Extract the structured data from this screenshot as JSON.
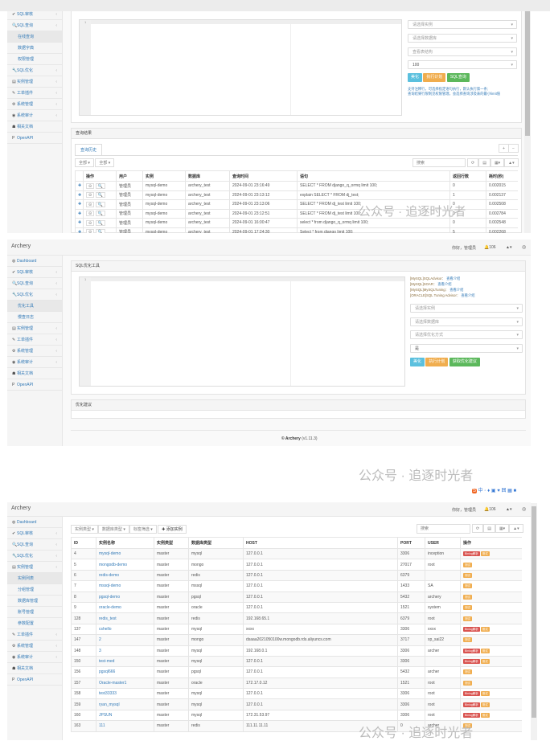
{
  "brand": "Archery",
  "navbar": {
    "greeting": "你好，管理员",
    "notif_count": "106"
  },
  "sidebar1": [
    {
      "label": "SQL审核",
      "icon": "check-icon",
      "arrow": true
    },
    {
      "label": "SQL查询",
      "icon": "search-icon",
      "arrow": true
    },
    {
      "label": "在线查询",
      "sub": true,
      "active": true
    },
    {
      "label": "数据字典",
      "sub": true
    },
    {
      "label": "权限管理",
      "sub": true
    },
    {
      "label": "SQL优化",
      "icon": "wrench-icon",
      "arrow": true
    },
    {
      "label": "实例管理",
      "icon": "database-icon",
      "arrow": true
    },
    {
      "label": "工单插件",
      "icon": "plugin-icon",
      "arrow": true
    },
    {
      "label": "系统管理",
      "icon": "gears-icon",
      "arrow": true
    },
    {
      "label": "系统审计",
      "icon": "eye-icon",
      "arrow": true
    },
    {
      "label": "相关文档",
      "icon": "sitemap-icon"
    },
    {
      "label": "OpenAPI",
      "icon": "api-icon"
    }
  ],
  "sidebar2": [
    {
      "label": "Dashboard",
      "icon": "dashboard-icon"
    },
    {
      "label": "SQL审核",
      "icon": "check-icon",
      "arrow": true
    },
    {
      "label": "SQL查询",
      "icon": "search-icon",
      "arrow": true
    },
    {
      "label": "SQL优化",
      "icon": "wrench-icon",
      "arrow": true
    },
    {
      "label": "优化工具",
      "sub": true,
      "active": true
    },
    {
      "label": "慢查日志",
      "sub": true
    },
    {
      "label": "实例管理",
      "icon": "database-icon",
      "arrow": true
    },
    {
      "label": "工单插件",
      "icon": "plugin-icon",
      "arrow": true
    },
    {
      "label": "系统管理",
      "icon": "gears-icon",
      "arrow": true
    },
    {
      "label": "系统审计",
      "icon": "eye-icon",
      "arrow": true
    },
    {
      "label": "相关文档",
      "icon": "sitemap-icon"
    },
    {
      "label": "OpenAPI",
      "icon": "api-icon"
    }
  ],
  "sidebar3": [
    {
      "label": "Dashboard",
      "icon": "dashboard-icon"
    },
    {
      "label": "SQL审核",
      "icon": "check-icon",
      "arrow": true
    },
    {
      "label": "SQL查询",
      "icon": "search-icon",
      "arrow": true
    },
    {
      "label": "SQL优化",
      "icon": "wrench-icon",
      "arrow": true
    },
    {
      "label": "实例管理",
      "icon": "database-icon",
      "arrow": true
    },
    {
      "label": "实例列表",
      "sub": true,
      "active": true
    },
    {
      "label": "分组管理",
      "sub": true
    },
    {
      "label": "数据库管理",
      "sub": true
    },
    {
      "label": "账号管理",
      "sub": true
    },
    {
      "label": "参数配置",
      "sub": true
    },
    {
      "label": "工单插件",
      "icon": "plugin-icon",
      "arrow": true
    },
    {
      "label": "系统管理",
      "icon": "gears-icon",
      "arrow": true
    },
    {
      "label": "系统审计",
      "icon": "eye-icon",
      "arrow": true
    },
    {
      "label": "相关文档",
      "icon": "sitemap-icon"
    },
    {
      "label": "OpenAPI",
      "icon": "api-icon"
    }
  ],
  "query": {
    "line_number": "1",
    "selects": [
      "请选择实例",
      "请选择数据库",
      "查看表结构",
      "100"
    ],
    "buttons": {
      "beautify": "美化",
      "explain": "执行计划",
      "run": "SQL查询"
    },
    "notes": [
      "支持注释行，可选择指定语句执行，默认执行第一条;",
      "查询结果行限制见权限管理，会选择查询涉及表的最小limit值"
    ],
    "result_title": "查询结果",
    "tab": "查询历史",
    "filters": [
      "全部",
      "全部"
    ],
    "search_placeholder": "搜索",
    "columns": [
      "操作",
      "用户",
      "实例",
      "数据库",
      "查询时间",
      "语句",
      "返回行数",
      "耗时(秒)"
    ],
    "rows": [
      [
        "管理员",
        "mysql-demo",
        "archery_test",
        "2024-09-01 23:16:49",
        "SELECT * FROM django_q_ormq limit 100;",
        "0",
        "0.002015"
      ],
      [
        "管理员",
        "mysql-demo",
        "archery_test",
        "2024-09-01 23:13:12",
        "explain SELECT * FROM dj_test;",
        "1",
        "0.002137"
      ],
      [
        "管理员",
        "mysql-demo",
        "archery_test",
        "2024-09-01 23:13:06",
        "SELECT * FROM dj_test limit 100;",
        "0",
        "0.002508"
      ],
      [
        "管理员",
        "mysql-demo",
        "archery_test",
        "2024-09-01 23:12:51",
        "SELECT * FROM dj_test limit 100;",
        "0",
        "0.002784"
      ],
      [
        "管理员",
        "mysql-demo",
        "archery_test",
        "2024-09-01 16:00:47",
        "select * from django_q_ormq limit 100;",
        "0",
        "0.002548"
      ],
      [
        "管理员",
        "mysql-demo",
        "archery_test",
        "2024-09-01 17:24:30",
        "Select * from django limit 100;",
        "5",
        "0.002268"
      ]
    ]
  },
  "optimize": {
    "title": "SQL优化工具",
    "line_number": "1",
    "tools": [
      {
        "name": "[MySQL]SQLAdvisor：",
        "link": "查看介绍"
      },
      {
        "name": "[MySQL]SOAR：",
        "link": "查看介绍"
      },
      {
        "name": "[MySQL]MySQLTuning：",
        "link": "查看介绍"
      },
      {
        "name": "[ORACLE]SQL Tuning Advisor：",
        "link": "查看介绍"
      }
    ],
    "selects": [
      "请选择实例",
      "请选择数据库",
      "请选择优化方式",
      "是"
    ],
    "buttons": {
      "beautify": "美化",
      "explain": "执行计划",
      "advise": "获取优化建议"
    },
    "advice_title": "优化建议",
    "footer_brand": "© Archery",
    "footer_version": "(v1.11.3)"
  },
  "instances": {
    "filters": [
      "实例类型",
      "数据库类型",
      "标签筛选"
    ],
    "add_label": "添加实例",
    "search_placeholder": "搜索",
    "columns": [
      "ID",
      "实例名称",
      "实例类型",
      "数据库类型",
      "HOST",
      "PORT",
      "USER",
      "操作"
    ],
    "binlog_label": "Binlog解析",
    "test_label": "测试",
    "rows": [
      {
        "id": "4",
        "name": "mysql-demo",
        "type": "master",
        "db": "mysql",
        "host": "127.0.0.1",
        "port": "3306",
        "user": "inception",
        "binlog": true
      },
      {
        "id": "5",
        "name": "mongodb-demo",
        "type": "master",
        "db": "mongo",
        "host": "127.0.0.1",
        "port": "27017",
        "user": "root"
      },
      {
        "id": "6",
        "name": "redis-demo",
        "type": "master",
        "db": "redis",
        "host": "127.0.0.1",
        "port": "6379",
        "user": ""
      },
      {
        "id": "7",
        "name": "mssql-demo",
        "type": "master",
        "db": "mssql",
        "host": "127.0.0.1",
        "port": "1433",
        "user": "SA"
      },
      {
        "id": "8",
        "name": "pgsql-demo",
        "type": "master",
        "db": "pgsql",
        "host": "127.0.0.1",
        "port": "5432",
        "user": "archery"
      },
      {
        "id": "9",
        "name": "oracle-demo",
        "type": "master",
        "db": "oracle",
        "host": "127.0.0.1",
        "port": "1521",
        "user": "system"
      },
      {
        "id": "128",
        "name": "redis_test",
        "type": "master",
        "db": "redis",
        "host": "192.168.65.1",
        "port": "6379",
        "user": "root"
      },
      {
        "id": "137",
        "name": "cshello",
        "type": "master",
        "db": "mysql",
        "host": "xxxx",
        "port": "3306",
        "user": "xxxx",
        "binlog": true
      },
      {
        "id": "147",
        "name": "2",
        "type": "master",
        "db": "mongo",
        "host": "dsaaa2021050100w.mongodb.rds.aliyuncs.com",
        "port": "3717",
        "user": "xp_sai22"
      },
      {
        "id": "148",
        "name": "3",
        "type": "master",
        "db": "mysql",
        "host": "192.168.0.1",
        "port": "3306",
        "user": "archer",
        "binlog": true
      },
      {
        "id": "150",
        "name": "test-med",
        "type": "master",
        "db": "mysql",
        "host": "127.0.0.1",
        "port": "3306",
        "user": "",
        "binlog": true
      },
      {
        "id": "156",
        "name": "pgsql666",
        "type": "master",
        "db": "pgsql",
        "host": "127.0.0.1",
        "port": "5432",
        "user": "archer"
      },
      {
        "id": "157",
        "name": "Oracle-master1",
        "type": "master",
        "db": "oracle",
        "host": "172.17.0.12",
        "port": "1521",
        "user": "root"
      },
      {
        "id": "158",
        "name": "test33333",
        "type": "master",
        "db": "mysql",
        "host": "127.0.0.1",
        "port": "3306",
        "user": "root",
        "binlog": true
      },
      {
        "id": "159",
        "name": "ryan_mysql",
        "type": "master",
        "db": "mysql",
        "host": "127.0.0.1",
        "port": "3306",
        "user": "root",
        "binlog": true
      },
      {
        "id": "160",
        "name": "JPSUN",
        "type": "master",
        "db": "mysql",
        "host": "172.31.53.97",
        "port": "3306",
        "user": "root",
        "binlog": true
      },
      {
        "id": "163",
        "name": "111",
        "type": "master",
        "db": "redis",
        "host": "111.11.11.11",
        "port": "0",
        "user": "archer"
      }
    ]
  },
  "watermark": "公众号 · 追逐时光者",
  "colors": {
    "link": "#337ab7",
    "info": "#5bc0de",
    "warning": "#f0ad4e",
    "success": "#5cb85c",
    "danger": "#d9534f"
  }
}
